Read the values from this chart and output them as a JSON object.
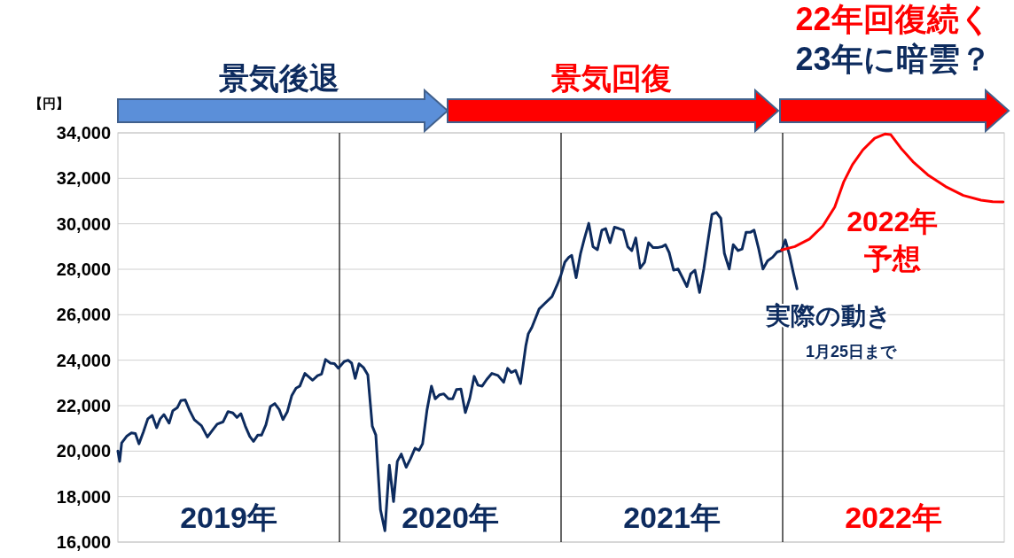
{
  "chart_data": {
    "type": "line",
    "ylabel": "【円】",
    "xlim": [
      2019,
      2023
    ],
    "ylim": [
      16000,
      34000
    ],
    "xticks": [
      {
        "value": 2019.5,
        "label": "2019年"
      },
      {
        "value": 2020.5,
        "label": "2020年"
      },
      {
        "value": 2021.5,
        "label": "2021年"
      },
      {
        "value": 2022.5,
        "label": "2022年"
      }
    ],
    "yticks": [
      {
        "value": 16000,
        "label": "16,000"
      },
      {
        "value": 18000,
        "label": "18,000"
      },
      {
        "value": 20000,
        "label": "20,000"
      },
      {
        "value": 22000,
        "label": "22,000"
      },
      {
        "value": 24000,
        "label": "24,000"
      },
      {
        "value": 26000,
        "label": "26,000"
      },
      {
        "value": 28000,
        "label": "28,000"
      },
      {
        "value": 30000,
        "label": "30,000"
      },
      {
        "value": 32000,
        "label": "32,000"
      },
      {
        "value": 34000,
        "label": "34,000"
      }
    ],
    "grid": "y",
    "legend": false,
    "marker": "none",
    "line_style": "solid",
    "ref_lines": [
      {
        "axis": "x",
        "value": 2020,
        "color": "#000000"
      },
      {
        "axis": "x",
        "value": 2021,
        "color": "#000000"
      },
      {
        "axis": "x",
        "value": 2022,
        "color": "#000000"
      }
    ],
    "annotations": [
      "景気後退",
      "景気回復",
      "22年回復続く",
      "23年に暗雲？",
      "1月25日まで"
    ],
    "series": [
      {
        "name": "実際の動き",
        "color": "#0d2b5e",
        "x": [
          2019.0,
          2019.008,
          2019.017,
          2019.041,
          2019.061,
          2019.079,
          2019.095,
          2019.115,
          2019.135,
          2019.155,
          2019.175,
          2019.191,
          2019.208,
          2019.231,
          2019.248,
          2019.268,
          2019.284,
          2019.304,
          2019.324,
          2019.345,
          2019.377,
          2019.404,
          2019.428,
          2019.448,
          2019.475,
          2019.497,
          2019.519,
          2019.537,
          2019.555,
          2019.575,
          2019.595,
          2019.612,
          2019.631,
          2019.648,
          2019.668,
          2019.688,
          2019.708,
          2019.728,
          2019.745,
          2019.765,
          2019.785,
          2019.804,
          2019.821,
          2019.844,
          2019.879,
          2019.901,
          2019.919,
          2019.937,
          2019.959,
          2019.977,
          2019.995,
          2020.021,
          2020.039,
          2020.055,
          2020.071,
          2020.088,
          2020.108,
          2020.128,
          2020.148,
          2020.164,
          2020.185,
          2020.205,
          2020.225,
          2020.244,
          2020.261,
          2020.279,
          2020.301,
          2020.321,
          2020.341,
          2020.359,
          2020.375,
          2020.395,
          2020.415,
          2020.432,
          2020.452,
          2020.471,
          2020.492,
          2020.511,
          2020.528,
          2020.548,
          2020.568,
          2020.588,
          2020.608,
          2020.625,
          2020.644,
          2020.665,
          2020.688,
          2020.715,
          2020.741,
          2020.759,
          2020.775,
          2020.795,
          2020.817,
          2020.841,
          2020.852,
          2020.868,
          2020.901,
          2020.928,
          2020.959,
          2020.981,
          2020.999,
          2021.017,
          2021.035,
          2021.048,
          2021.068,
          2021.088,
          2021.105,
          2021.125,
          2021.144,
          2021.164,
          2021.184,
          2021.201,
          2021.221,
          2021.241,
          2021.261,
          2021.281,
          2021.301,
          2021.319,
          2021.337,
          2021.357,
          2021.377,
          2021.395,
          2021.415,
          2021.435,
          2021.455,
          2021.471,
          2021.488,
          2021.508,
          2021.528,
          2021.548,
          2021.568,
          2021.585,
          2021.604,
          2021.625,
          2021.644,
          2021.665,
          2021.681,
          2021.701,
          2021.721,
          2021.737,
          2021.759,
          2021.777,
          2021.799,
          2021.817,
          2021.835,
          2021.855,
          2021.871,
          2021.892,
          2021.911,
          2021.932,
          2021.955,
          2021.975,
          2021.995,
          2022.012,
          2022.031,
          2022.048,
          2022.065
        ],
        "values": [
          20000,
          19550,
          20360,
          20670,
          20800,
          20770,
          20320,
          20840,
          21420,
          21570,
          21030,
          21420,
          21610,
          21230,
          21780,
          21910,
          22220,
          22250,
          21780,
          21380,
          21120,
          20620,
          20930,
          21190,
          21290,
          21740,
          21680,
          21480,
          21650,
          21100,
          20650,
          20430,
          20700,
          20700,
          21160,
          21960,
          22090,
          21830,
          21390,
          21740,
          22450,
          22770,
          22860,
          23420,
          23120,
          23320,
          23390,
          24030,
          23870,
          23850,
          23650,
          23940,
          24000,
          23870,
          23200,
          23840,
          23680,
          23350,
          21100,
          20710,
          17420,
          16500,
          19380,
          17780,
          19550,
          19870,
          19290,
          19680,
          20130,
          20030,
          20320,
          21810,
          22860,
          22300,
          22480,
          22520,
          22300,
          22300,
          22710,
          22730,
          21700,
          22320,
          23290,
          22900,
          22860,
          23160,
          23420,
          23330,
          23030,
          23640,
          23460,
          23550,
          22970,
          24640,
          25160,
          25440,
          26250,
          26510,
          26800,
          27280,
          27730,
          28310,
          28530,
          28610,
          27630,
          28700,
          29340,
          30020,
          28990,
          28860,
          29720,
          29790,
          29170,
          29850,
          29790,
          29720,
          28990,
          28820,
          29380,
          28050,
          28310,
          29170,
          28950,
          28950,
          28990,
          29080,
          28730,
          27960,
          28010,
          27630,
          27240,
          27800,
          27960,
          26980,
          28010,
          29380,
          30410,
          30500,
          30240,
          28700,
          28010,
          29080,
          28820,
          28890,
          29630,
          29630,
          29720,
          28890,
          28010,
          28370,
          28530,
          28760,
          28820,
          29290,
          28620,
          27850,
          27140
        ]
      },
      {
        "name": "2022年予想",
        "color": "#ff0000",
        "x": [
          2021.995,
          2022.055,
          2022.121,
          2022.181,
          2022.235,
          2022.275,
          2022.315,
          2022.362,
          2022.415,
          2022.461,
          2022.488,
          2022.535,
          2022.588,
          2022.655,
          2022.735,
          2022.815,
          2022.895,
          2022.948,
          2022.995
        ],
        "values": [
          28850,
          29000,
          29330,
          29900,
          30740,
          31830,
          32600,
          33250,
          33760,
          33950,
          33920,
          33310,
          32730,
          32150,
          31640,
          31250,
          31040,
          30970,
          30960
        ]
      }
    ]
  }
}
